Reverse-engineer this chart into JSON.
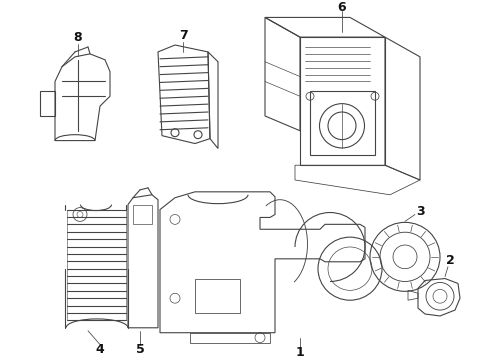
{
  "background_color": "#ffffff",
  "line_color": "#444444",
  "label_color": "#111111",
  "fig_width": 4.9,
  "fig_height": 3.6,
  "dpi": 100,
  "label_fontsize": 9,
  "lw": 0.8
}
